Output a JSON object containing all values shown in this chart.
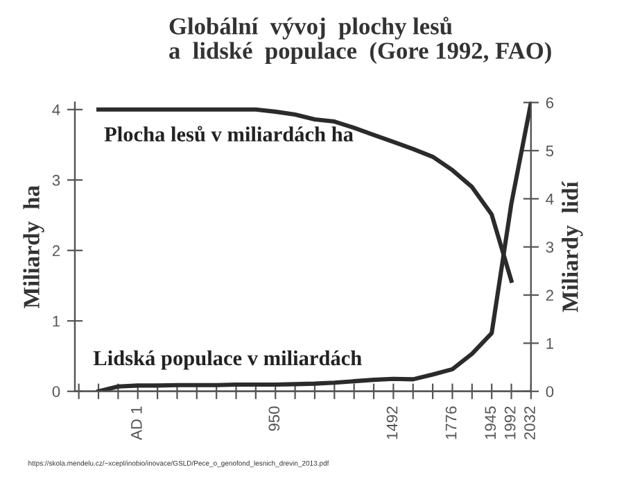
{
  "chart_data": {
    "type": "line",
    "title": "Globální  vývoj  plochy lesů\na  lidské  populace  (Gore 1992, FAO)",
    "ylabel": "Miliardy  ha",
    "y2label": "Miliardy  lidí",
    "categories": [
      null,
      null,
      null,
      "AD 1",
      null,
      null,
      null,
      null,
      null,
      null,
      "950",
      null,
      null,
      null,
      null,
      null,
      "1492",
      null,
      null,
      "1776",
      null,
      "1945",
      "1992",
      "2032"
    ],
    "ylim": [
      0,
      4.1
    ],
    "yticks": [
      0,
      1,
      2,
      3,
      4
    ],
    "y2lim": [
      0,
      6
    ],
    "y2ticks": [
      0,
      1,
      2,
      3,
      4,
      5,
      6
    ],
    "legend": false,
    "grid": false,
    "series": [
      {
        "name": "Plocha lesů v miliardách ha",
        "color": "#2b2b2b",
        "values": [
          null,
          4.0,
          4.0,
          4.0,
          4.0,
          4.0,
          4.0,
          4.0,
          4.0,
          4.0,
          3.97,
          3.93,
          3.86,
          3.83,
          3.74,
          3.64,
          3.54,
          3.44,
          3.33,
          3.14,
          2.9,
          2.51,
          1.57,
          null
        ]
      },
      {
        "name": "Lidská populace v miliardách",
        "color": "#2b2b2b",
        "axis": "y2",
        "values": [
          null,
          0.0,
          0.1,
          0.12,
          0.12,
          0.13,
          0.13,
          0.13,
          0.14,
          0.14,
          0.14,
          0.15,
          0.16,
          0.18,
          0.21,
          0.24,
          0.26,
          0.25,
          0.35,
          0.46,
          0.78,
          1.21,
          3.9,
          6.0
        ]
      }
    ],
    "annotations": [
      "https://skola.mendelu.cz/~xcepl/inobio/inovace/GSLD/Pece_o_genofond_lesnich_drevin_2013.pdf"
    ]
  }
}
